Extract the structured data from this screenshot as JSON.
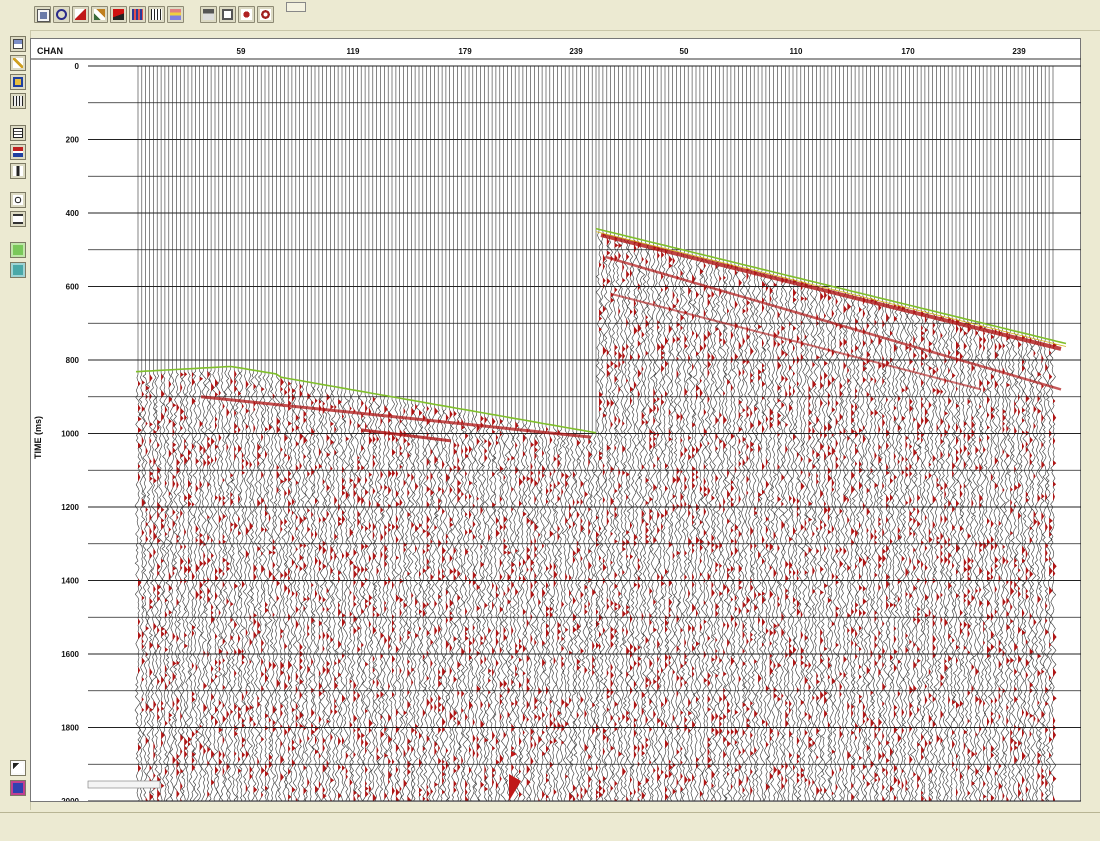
{
  "plot": {
    "channel_axis_label": "CHAN",
    "time_axis_label": "TIME (ms)",
    "channel_ticks": [
      "59",
      "119",
      "179",
      "239",
      "50",
      "110",
      "170",
      "239"
    ],
    "time_ticks": [
      "0",
      "200",
      "400",
      "600",
      "800",
      "1000",
      "1200",
      "1400",
      "1600",
      "1800",
      "2000"
    ],
    "first_break_color": "#7fbf2a",
    "trace_fill_color": "#b01515"
  },
  "colors": {
    "background": "#ecead2",
    "plot_background": "#ffffff",
    "grid": "#333333"
  },
  "toolbar": {
    "icons": [
      "plot-icon",
      "zoom-icon",
      "chart-icon",
      "edit-icon",
      "flag-icon",
      "grid-icon",
      "wave-icon",
      "scale-icon",
      "print-icon",
      "copy-icon",
      "tools-icon",
      "settings-icon"
    ]
  },
  "sidebar": {
    "icons": [
      "display-icon",
      "pencil-icon",
      "color-icon",
      "scale-icon",
      "trace-icon",
      "gain-icon",
      "text-icon",
      "measure-icon",
      "pick-icon",
      "r-icon",
      "s-icon",
      "pointer-icon",
      "palette-icon"
    ]
  }
}
